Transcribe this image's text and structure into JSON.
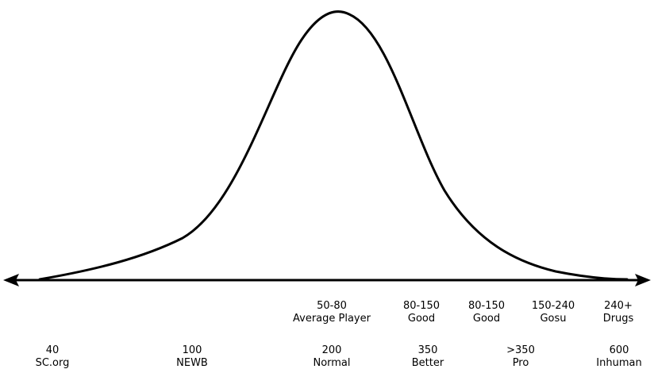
{
  "colors": {
    "curve": "#000000",
    "axis": "#000000",
    "background": "#ffffff"
  },
  "diagram": {
    "shape": "bell-curve",
    "arrows": "both-ends",
    "row_upper": [
      {
        "value": "50-80",
        "label": "Average Player"
      },
      {
        "value": "80-150",
        "label": "Good"
      },
      {
        "value": "80-150",
        "label": "Good"
      },
      {
        "value": "150-240",
        "label": "Gosu"
      },
      {
        "value": "240+",
        "label": "Drugs"
      }
    ],
    "row_lower": [
      {
        "value": "40",
        "label": "SC.org"
      },
      {
        "value": "100",
        "label": "NEWB"
      },
      {
        "value": "200",
        "label": "Normal"
      },
      {
        "value": "350",
        "label": "Better"
      },
      {
        "value": ">350",
        "label": "Pro"
      },
      {
        "value": "600",
        "label": "Inhuman"
      }
    ]
  }
}
